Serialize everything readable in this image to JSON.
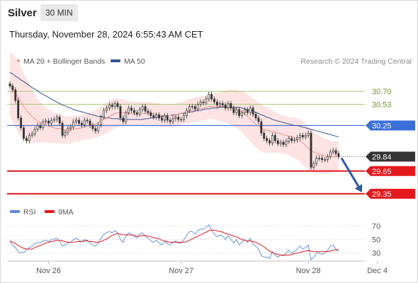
{
  "header": {
    "instrument": "Silver",
    "timeframe": "30 MIN",
    "timestamp": "Thursday, November 28, 2024 6:55:43 AM CET",
    "credit": "Research © 2024 Trading Central"
  },
  "colors": {
    "candle": "#333333",
    "bollinger_fill": "#fde3e3",
    "ma20": "#f4908c",
    "ma50": "#35558f",
    "green_level": "#a3c66f",
    "blue_level": "#3b6fd8",
    "red_level": "#e4191c",
    "price_tag": "#333333",
    "rsi": "#5d88d8",
    "rsi_ma": "#e4191c",
    "arrow": "#2e5aa0"
  },
  "chart_data": [
    {
      "type": "candlestick",
      "title": "Silver",
      "legend": [
        {
          "name": "MA 20 + Bollinger Bands",
          "color": "#f4908c"
        },
        {
          "name": "MA 50",
          "color": "#35558f"
        }
      ],
      "x_ticks": [
        "Nov 26",
        "Nov 27",
        "Nov 28",
        "Dec 4"
      ],
      "x_tick_index": [
        14,
        62,
        108,
        133
      ],
      "y_range": [
        29.2,
        31.0
      ],
      "levels": [
        {
          "value": 30.7,
          "label": "30.70",
          "style": "green"
        },
        {
          "value": 30.53,
          "label": "30.53",
          "style": "green"
        },
        {
          "value": 30.25,
          "label": "30.25",
          "style": "blue"
        },
        {
          "value": 29.84,
          "label": "29.84",
          "style": "price"
        },
        {
          "value": 29.65,
          "label": "29.65",
          "style": "red"
        },
        {
          "value": 29.35,
          "label": "29.35",
          "style": "red"
        }
      ],
      "close": [
        30.77,
        30.72,
        30.58,
        30.35,
        30.22,
        30.08,
        30.05,
        30.12,
        30.14,
        30.2,
        30.25,
        30.22,
        30.3,
        30.31,
        30.28,
        30.32,
        30.33,
        30.36,
        30.28,
        30.12,
        30.16,
        30.21,
        30.23,
        30.3,
        30.32,
        30.28,
        30.26,
        30.32,
        30.31,
        30.25,
        30.21,
        30.18,
        30.26,
        30.36,
        30.45,
        30.48,
        30.52,
        30.5,
        30.54,
        30.5,
        30.35,
        30.3,
        30.42,
        30.48,
        30.45,
        30.42,
        30.4,
        30.46,
        30.5,
        30.44,
        30.42,
        30.38,
        30.36,
        30.39,
        30.35,
        30.32,
        30.38,
        30.32,
        30.3,
        30.34,
        30.36,
        30.33,
        30.33,
        30.38,
        30.45,
        30.5,
        30.5,
        30.47,
        30.53,
        30.56,
        30.55,
        30.6,
        30.66,
        30.6,
        30.56,
        30.52,
        30.54,
        30.52,
        30.48,
        30.54,
        30.48,
        30.42,
        30.46,
        30.38,
        30.42,
        30.46,
        30.42,
        30.48,
        30.4,
        30.35,
        30.3,
        30.15,
        30.08,
        30.05,
        30.02,
        30.12,
        30.05,
        30.01,
        30.03,
        30.0,
        30.04,
        30.08,
        30.05,
        30.06,
        30.09,
        30.12,
        30.1,
        30.12,
        30.15,
        29.7,
        29.75,
        29.82,
        29.82,
        29.8,
        29.8,
        29.84,
        29.9,
        29.92,
        29.88,
        29.84
      ],
      "ma20": [
        30.8,
        30.74,
        30.68,
        30.62,
        30.56,
        30.5,
        30.45,
        30.41,
        30.37,
        30.34,
        30.31,
        30.29,
        30.27,
        30.26,
        30.24,
        30.23,
        30.22,
        30.21,
        30.21,
        30.2,
        30.19,
        30.19,
        30.19,
        30.2,
        30.21,
        30.21,
        30.22,
        30.23,
        30.24,
        30.25,
        30.26,
        30.27,
        30.29,
        30.31,
        30.33,
        30.35,
        30.37,
        30.39,
        30.41,
        30.42,
        30.42,
        30.42,
        30.42,
        30.41,
        30.41,
        30.4,
        30.4,
        30.41,
        30.41,
        30.41,
        30.41,
        30.41,
        30.4,
        30.4,
        30.39,
        30.38,
        30.38,
        30.38,
        30.38,
        30.38,
        30.39,
        30.4,
        30.41,
        30.42,
        30.43,
        30.44,
        30.45,
        30.46,
        30.47,
        30.47,
        30.48,
        30.49,
        30.5,
        30.5,
        30.5,
        30.5,
        30.5,
        30.5,
        30.5,
        30.5,
        30.49,
        30.48,
        30.47,
        30.45,
        30.43,
        30.4,
        30.37,
        30.34,
        30.3,
        30.27,
        30.24,
        30.22,
        30.2,
        30.19,
        30.18,
        30.17,
        30.16,
        30.15,
        30.14,
        30.13,
        30.12,
        30.11,
        30.1,
        30.09,
        30.07,
        30.05,
        30.02,
        29.99,
        29.95,
        29.92,
        29.9,
        29.88,
        29.87,
        29.86,
        29.85,
        29.84,
        29.84,
        29.84,
        29.84,
        29.84
      ],
      "ma50": [
        30.95,
        30.93,
        30.9,
        30.88,
        30.85,
        30.83,
        30.8,
        30.78,
        30.75,
        30.73,
        30.71,
        30.68,
        30.66,
        30.64,
        30.62,
        30.6,
        30.58,
        30.56,
        30.54,
        30.52,
        30.51,
        30.49,
        30.48,
        30.46,
        30.45,
        30.44,
        30.43,
        30.42,
        30.41,
        30.4,
        30.39,
        30.38,
        30.37,
        30.37,
        30.36,
        30.35,
        30.35,
        30.34,
        30.34,
        30.34,
        30.33,
        30.33,
        30.33,
        30.33,
        30.33,
        30.33,
        30.33,
        30.33,
        30.33,
        30.34,
        30.34,
        30.35,
        30.35,
        30.36,
        30.36,
        30.37,
        30.37,
        30.38,
        30.38,
        30.39,
        30.39,
        30.4,
        30.41,
        30.41,
        30.42,
        30.43,
        30.43,
        30.44,
        30.45,
        30.45,
        30.46,
        30.47,
        30.47,
        30.48,
        30.48,
        30.48,
        30.49,
        30.49,
        30.49,
        30.49,
        30.49,
        30.49,
        30.49,
        30.49,
        30.48,
        30.47,
        30.46,
        30.45,
        30.44,
        30.42,
        30.41,
        30.39,
        30.38,
        30.36,
        30.35,
        30.33,
        30.32,
        30.31,
        30.3,
        30.29,
        30.28,
        30.27,
        30.26,
        30.25,
        30.25,
        30.24,
        30.23,
        30.22,
        30.21,
        30.2,
        30.19,
        30.18,
        30.17,
        30.16,
        30.15,
        30.14,
        30.13,
        30.12,
        30.11,
        30.1
      ],
      "bollinger_width": [
        0.42,
        0.45,
        0.46,
        0.47,
        0.46,
        0.44,
        0.41,
        0.38,
        0.35,
        0.32,
        0.29,
        0.27,
        0.25,
        0.23,
        0.22,
        0.21,
        0.2,
        0.2,
        0.19,
        0.19,
        0.18,
        0.18,
        0.18,
        0.17,
        0.17,
        0.17,
        0.17,
        0.17,
        0.17,
        0.17,
        0.18,
        0.18,
        0.19,
        0.19,
        0.2,
        0.2,
        0.2,
        0.2,
        0.19,
        0.19,
        0.18,
        0.18,
        0.17,
        0.16,
        0.16,
        0.16,
        0.15,
        0.15,
        0.15,
        0.15,
        0.15,
        0.15,
        0.15,
        0.15,
        0.15,
        0.15,
        0.15,
        0.15,
        0.15,
        0.15,
        0.15,
        0.15,
        0.15,
        0.15,
        0.16,
        0.16,
        0.16,
        0.16,
        0.16,
        0.16,
        0.16,
        0.16,
        0.16,
        0.17,
        0.17,
        0.18,
        0.19,
        0.2,
        0.21,
        0.22,
        0.23,
        0.24,
        0.25,
        0.26,
        0.27,
        0.28,
        0.29,
        0.3,
        0.31,
        0.31,
        0.31,
        0.31,
        0.31,
        0.3,
        0.29,
        0.28,
        0.27,
        0.26,
        0.25,
        0.25,
        0.25,
        0.25,
        0.26,
        0.27,
        0.27,
        0.28,
        0.29,
        0.29,
        0.29,
        0.28,
        0.27,
        0.26,
        0.25,
        0.24,
        0.23,
        0.22,
        0.21,
        0.2,
        0.2,
        0.2
      ],
      "forecast_arrow": {
        "from": 29.84,
        "to": 29.35
      }
    },
    {
      "type": "line",
      "title": "RSI",
      "legend": [
        {
          "name": "RSI",
          "color": "#5d88d8"
        },
        {
          "name": "9MA",
          "color": "#e4191c"
        }
      ],
      "y_ticks": [
        70,
        50,
        30
      ],
      "y_range": [
        15,
        80
      ],
      "rsi": [
        48,
        42,
        38,
        32,
        30,
        31,
        35,
        38,
        40,
        44,
        46,
        45,
        48,
        49,
        47,
        50,
        51,
        52,
        48,
        40,
        42,
        45,
        46,
        50,
        52,
        49,
        47,
        50,
        49,
        45,
        42,
        40,
        45,
        52,
        58,
        60,
        62,
        60,
        63,
        60,
        50,
        46,
        55,
        60,
        58,
        55,
        52,
        58,
        60,
        55,
        52,
        48,
        46,
        49,
        45,
        42,
        48,
        44,
        42,
        46,
        48,
        45,
        45,
        50,
        56,
        62,
        62,
        58,
        63,
        66,
        65,
        68,
        72,
        64,
        58,
        54,
        57,
        55,
        50,
        56,
        50,
        45,
        50,
        42,
        46,
        50,
        46,
        52,
        44,
        40,
        36,
        26,
        24,
        24,
        22,
        32,
        27,
        24,
        27,
        26,
        30,
        34,
        30,
        32,
        36,
        40,
        36,
        38,
        42,
        20,
        24,
        30,
        30,
        28,
        30,
        34,
        40,
        42,
        36,
        32
      ],
      "rsi_9ma": [
        48,
        46,
        44,
        41,
        39,
        37,
        36,
        36,
        36,
        38,
        40,
        41,
        43,
        45,
        46,
        47,
        48,
        49,
        49,
        48,
        47,
        46,
        46,
        46,
        47,
        47,
        47,
        48,
        48,
        47,
        47,
        46,
        46,
        47,
        49,
        51,
        54,
        56,
        58,
        59,
        58,
        57,
        57,
        57,
        57,
        56,
        55,
        55,
        56,
        56,
        55,
        54,
        53,
        52,
        51,
        49,
        48,
        47,
        46,
        46,
        46,
        46,
        46,
        46,
        47,
        49,
        51,
        53,
        55,
        57,
        59,
        61,
        63,
        64,
        64,
        63,
        62,
        61,
        59,
        58,
        57,
        55,
        54,
        52,
        50,
        49,
        48,
        48,
        47,
        46,
        44,
        42,
        39,
        36,
        33,
        31,
        29,
        28,
        27,
        27,
        27,
        27,
        28,
        29,
        30,
        31,
        32,
        33,
        34,
        33,
        32,
        32,
        32,
        32,
        32,
        32,
        33,
        34,
        35,
        35
      ]
    }
  ]
}
